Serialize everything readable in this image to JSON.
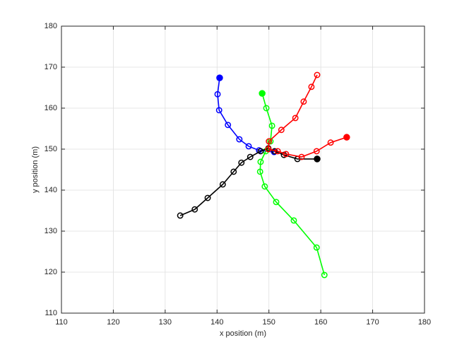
{
  "chart_data": {
    "type": "line",
    "xlabel": "x position (m)",
    "ylabel": "y position (m)",
    "xlim": [
      110,
      180
    ],
    "ylim": [
      110,
      180
    ],
    "xticks": [
      110,
      120,
      130,
      140,
      150,
      160,
      170,
      180
    ],
    "yticks": [
      110,
      120,
      130,
      140,
      150,
      160,
      170,
      180
    ],
    "grid": true,
    "start_filled": true,
    "series": [
      {
        "color": "#0000ff",
        "x": [
          140.5,
          140.1,
          140.4,
          142.1,
          144.3,
          146.1,
          148.1,
          151.0
        ],
        "y": [
          167.4,
          163.4,
          159.5,
          155.9,
          152.4,
          150.7,
          149.7,
          149.3
        ]
      },
      {
        "color": "#00ff00",
        "x": [
          148.7,
          149.5,
          150.6,
          150.3,
          149.4,
          148.4,
          148.3,
          149.2,
          151.4,
          154.8,
          159.2,
          160.7
        ],
        "y": [
          163.6,
          160.0,
          155.7,
          151.9,
          149.5,
          146.9,
          144.5,
          140.9,
          137.1,
          132.6,
          126.0,
          119.3
        ]
      },
      {
        "color": "#000000",
        "x": [
          159.3,
          155.5,
          152.9,
          151.1,
          149.9,
          148.4,
          146.4,
          144.7,
          143.2,
          141.1,
          138.2,
          135.7,
          132.9
        ],
        "y": [
          147.6,
          147.6,
          148.6,
          149.5,
          150.2,
          149.5,
          148.1,
          146.7,
          144.5,
          141.4,
          138.1,
          135.3,
          133.8
        ]
      },
      {
        "color": "#ff0000",
        "x": [
          165.0,
          161.9,
          159.2,
          156.3,
          153.3,
          151.7,
          149.9,
          150.0,
          152.4,
          155.1,
          156.7,
          158.2,
          159.3
        ],
        "y": [
          152.9,
          151.6,
          149.5,
          148.1,
          148.8,
          149.5,
          150.0,
          151.9,
          154.7,
          157.6,
          161.6,
          165.2,
          168.1
        ]
      }
    ]
  }
}
